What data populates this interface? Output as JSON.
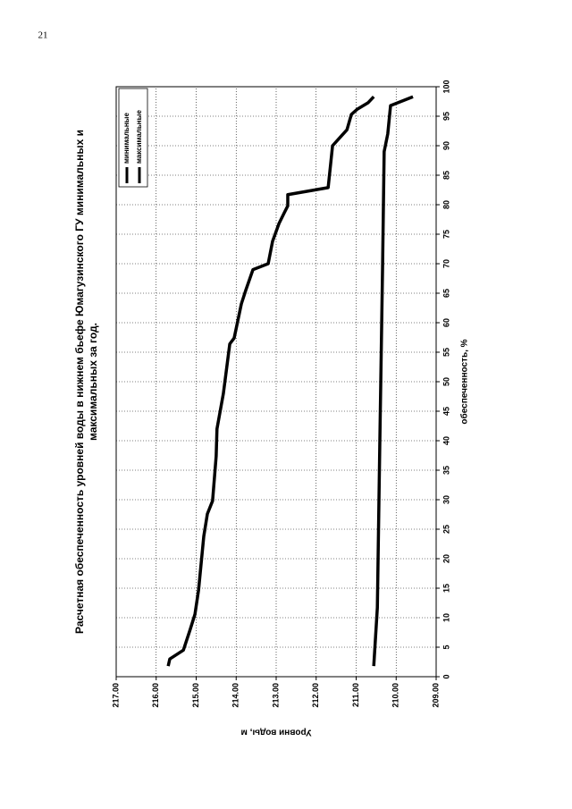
{
  "page_number": "21",
  "chart_data": {
    "type": "line",
    "title": [
      "Расчетная обеспеченность уровней воды в нижнем бьефе Юмагузинского ГУ  минимальных и",
      "максимальных за год."
    ],
    "x_label": "обеспеченность, %",
    "y_label": "Уровни воды, м",
    "xlim": [
      0,
      100
    ],
    "xticks": [
      0,
      5,
      10,
      15,
      20,
      25,
      30,
      35,
      40,
      45,
      50,
      55,
      60,
      65,
      70,
      75,
      80,
      85,
      90,
      95,
      100
    ],
    "ylim": [
      209,
      217
    ],
    "yticks": [
      {
        "value": 209,
        "label": "209.00"
      },
      {
        "value": 210,
        "label": "210.00"
      },
      {
        "value": 211,
        "label": "211.00"
      },
      {
        "value": 212,
        "label": "212.00"
      },
      {
        "value": 213,
        "label": "213.00"
      },
      {
        "value": 214,
        "label": "214.00"
      },
      {
        "value": 215,
        "label": "215.00"
      },
      {
        "value": 216,
        "label": "216.00"
      },
      {
        "value": 217,
        "label": "217.00"
      }
    ],
    "grid": true,
    "legend": "top-right",
    "series": [
      {
        "name": "минимальные",
        "color": "#000000",
        "x": [
          1.8,
          11.7,
          39,
          69.2,
          89,
          92,
          96.8,
          98.3
        ],
        "values": [
          210.56,
          210.47,
          210.41,
          210.34,
          210.3,
          210.21,
          210.14,
          209.58
        ]
      },
      {
        "name": "максимальные",
        "color": "#000000",
        "x": [
          1.8,
          3,
          4.5,
          8,
          10.6,
          14.7,
          23.8,
          27.6,
          29.8,
          37.4,
          42,
          48,
          56.4,
          57.4,
          63.2,
          65.5,
          69,
          70,
          73.8,
          76.8,
          78.6,
          79.8,
          81.7,
          82.9,
          90,
          92.7,
          95.3,
          96.2,
          97.3,
          98.3
        ],
        "values": [
          215.7,
          215.66,
          215.32,
          215.15,
          215.03,
          214.94,
          214.81,
          214.72,
          214.59,
          214.5,
          214.48,
          214.32,
          214.16,
          214.05,
          213.87,
          213.76,
          213.58,
          213.2,
          213.09,
          212.93,
          212.8,
          212.71,
          212.71,
          211.7,
          211.59,
          211.23,
          211.12,
          210.97,
          210.7,
          210.56
        ]
      }
    ]
  }
}
